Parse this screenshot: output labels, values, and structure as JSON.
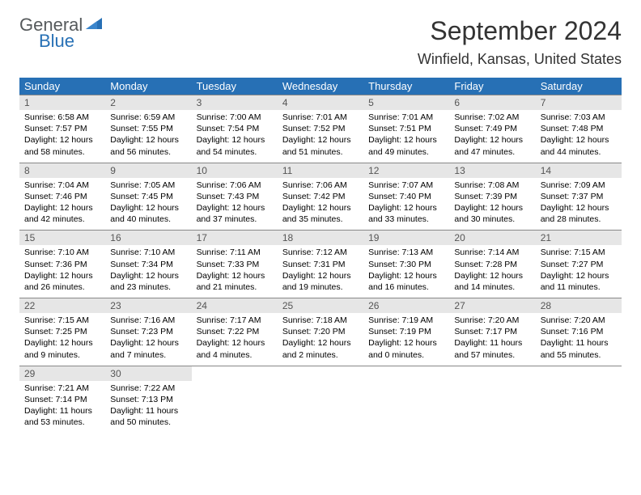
{
  "logo": {
    "line1": "General",
    "line2": "Blue"
  },
  "title": "September 2024",
  "location": "Winfield, Kansas, United States",
  "colors": {
    "header_bg": "#2770b5",
    "header_fg": "#ffffff",
    "daynum_bg": "#e6e6e6",
    "daynum_fg": "#555555",
    "page_bg": "#ffffff",
    "text": "#000000",
    "logo_gray": "#565a5c",
    "logo_blue": "#2770b5",
    "rule": "#888888"
  },
  "weekdays": [
    "Sunday",
    "Monday",
    "Tuesday",
    "Wednesday",
    "Thursday",
    "Friday",
    "Saturday"
  ],
  "weeks": [
    [
      {
        "n": "1",
        "sr": "Sunrise: 6:58 AM",
        "ss": "Sunset: 7:57 PM",
        "dl1": "Daylight: 12 hours",
        "dl2": "and 58 minutes."
      },
      {
        "n": "2",
        "sr": "Sunrise: 6:59 AM",
        "ss": "Sunset: 7:55 PM",
        "dl1": "Daylight: 12 hours",
        "dl2": "and 56 minutes."
      },
      {
        "n": "3",
        "sr": "Sunrise: 7:00 AM",
        "ss": "Sunset: 7:54 PM",
        "dl1": "Daylight: 12 hours",
        "dl2": "and 54 minutes."
      },
      {
        "n": "4",
        "sr": "Sunrise: 7:01 AM",
        "ss": "Sunset: 7:52 PM",
        "dl1": "Daylight: 12 hours",
        "dl2": "and 51 minutes."
      },
      {
        "n": "5",
        "sr": "Sunrise: 7:01 AM",
        "ss": "Sunset: 7:51 PM",
        "dl1": "Daylight: 12 hours",
        "dl2": "and 49 minutes."
      },
      {
        "n": "6",
        "sr": "Sunrise: 7:02 AM",
        "ss": "Sunset: 7:49 PM",
        "dl1": "Daylight: 12 hours",
        "dl2": "and 47 minutes."
      },
      {
        "n": "7",
        "sr": "Sunrise: 7:03 AM",
        "ss": "Sunset: 7:48 PM",
        "dl1": "Daylight: 12 hours",
        "dl2": "and 44 minutes."
      }
    ],
    [
      {
        "n": "8",
        "sr": "Sunrise: 7:04 AM",
        "ss": "Sunset: 7:46 PM",
        "dl1": "Daylight: 12 hours",
        "dl2": "and 42 minutes."
      },
      {
        "n": "9",
        "sr": "Sunrise: 7:05 AM",
        "ss": "Sunset: 7:45 PM",
        "dl1": "Daylight: 12 hours",
        "dl2": "and 40 minutes."
      },
      {
        "n": "10",
        "sr": "Sunrise: 7:06 AM",
        "ss": "Sunset: 7:43 PM",
        "dl1": "Daylight: 12 hours",
        "dl2": "and 37 minutes."
      },
      {
        "n": "11",
        "sr": "Sunrise: 7:06 AM",
        "ss": "Sunset: 7:42 PM",
        "dl1": "Daylight: 12 hours",
        "dl2": "and 35 minutes."
      },
      {
        "n": "12",
        "sr": "Sunrise: 7:07 AM",
        "ss": "Sunset: 7:40 PM",
        "dl1": "Daylight: 12 hours",
        "dl2": "and 33 minutes."
      },
      {
        "n": "13",
        "sr": "Sunrise: 7:08 AM",
        "ss": "Sunset: 7:39 PM",
        "dl1": "Daylight: 12 hours",
        "dl2": "and 30 minutes."
      },
      {
        "n": "14",
        "sr": "Sunrise: 7:09 AM",
        "ss": "Sunset: 7:37 PM",
        "dl1": "Daylight: 12 hours",
        "dl2": "and 28 minutes."
      }
    ],
    [
      {
        "n": "15",
        "sr": "Sunrise: 7:10 AM",
        "ss": "Sunset: 7:36 PM",
        "dl1": "Daylight: 12 hours",
        "dl2": "and 26 minutes."
      },
      {
        "n": "16",
        "sr": "Sunrise: 7:10 AM",
        "ss": "Sunset: 7:34 PM",
        "dl1": "Daylight: 12 hours",
        "dl2": "and 23 minutes."
      },
      {
        "n": "17",
        "sr": "Sunrise: 7:11 AM",
        "ss": "Sunset: 7:33 PM",
        "dl1": "Daylight: 12 hours",
        "dl2": "and 21 minutes."
      },
      {
        "n": "18",
        "sr": "Sunrise: 7:12 AM",
        "ss": "Sunset: 7:31 PM",
        "dl1": "Daylight: 12 hours",
        "dl2": "and 19 minutes."
      },
      {
        "n": "19",
        "sr": "Sunrise: 7:13 AM",
        "ss": "Sunset: 7:30 PM",
        "dl1": "Daylight: 12 hours",
        "dl2": "and 16 minutes."
      },
      {
        "n": "20",
        "sr": "Sunrise: 7:14 AM",
        "ss": "Sunset: 7:28 PM",
        "dl1": "Daylight: 12 hours",
        "dl2": "and 14 minutes."
      },
      {
        "n": "21",
        "sr": "Sunrise: 7:15 AM",
        "ss": "Sunset: 7:27 PM",
        "dl1": "Daylight: 12 hours",
        "dl2": "and 11 minutes."
      }
    ],
    [
      {
        "n": "22",
        "sr": "Sunrise: 7:15 AM",
        "ss": "Sunset: 7:25 PM",
        "dl1": "Daylight: 12 hours",
        "dl2": "and 9 minutes."
      },
      {
        "n": "23",
        "sr": "Sunrise: 7:16 AM",
        "ss": "Sunset: 7:23 PM",
        "dl1": "Daylight: 12 hours",
        "dl2": "and 7 minutes."
      },
      {
        "n": "24",
        "sr": "Sunrise: 7:17 AM",
        "ss": "Sunset: 7:22 PM",
        "dl1": "Daylight: 12 hours",
        "dl2": "and 4 minutes."
      },
      {
        "n": "25",
        "sr": "Sunrise: 7:18 AM",
        "ss": "Sunset: 7:20 PM",
        "dl1": "Daylight: 12 hours",
        "dl2": "and 2 minutes."
      },
      {
        "n": "26",
        "sr": "Sunrise: 7:19 AM",
        "ss": "Sunset: 7:19 PM",
        "dl1": "Daylight: 12 hours",
        "dl2": "and 0 minutes."
      },
      {
        "n": "27",
        "sr": "Sunrise: 7:20 AM",
        "ss": "Sunset: 7:17 PM",
        "dl1": "Daylight: 11 hours",
        "dl2": "and 57 minutes."
      },
      {
        "n": "28",
        "sr": "Sunrise: 7:20 AM",
        "ss": "Sunset: 7:16 PM",
        "dl1": "Daylight: 11 hours",
        "dl2": "and 55 minutes."
      }
    ],
    [
      {
        "n": "29",
        "sr": "Sunrise: 7:21 AM",
        "ss": "Sunset: 7:14 PM",
        "dl1": "Daylight: 11 hours",
        "dl2": "and 53 minutes."
      },
      {
        "n": "30",
        "sr": "Sunrise: 7:22 AM",
        "ss": "Sunset: 7:13 PM",
        "dl1": "Daylight: 11 hours",
        "dl2": "and 50 minutes."
      },
      null,
      null,
      null,
      null,
      null
    ]
  ]
}
